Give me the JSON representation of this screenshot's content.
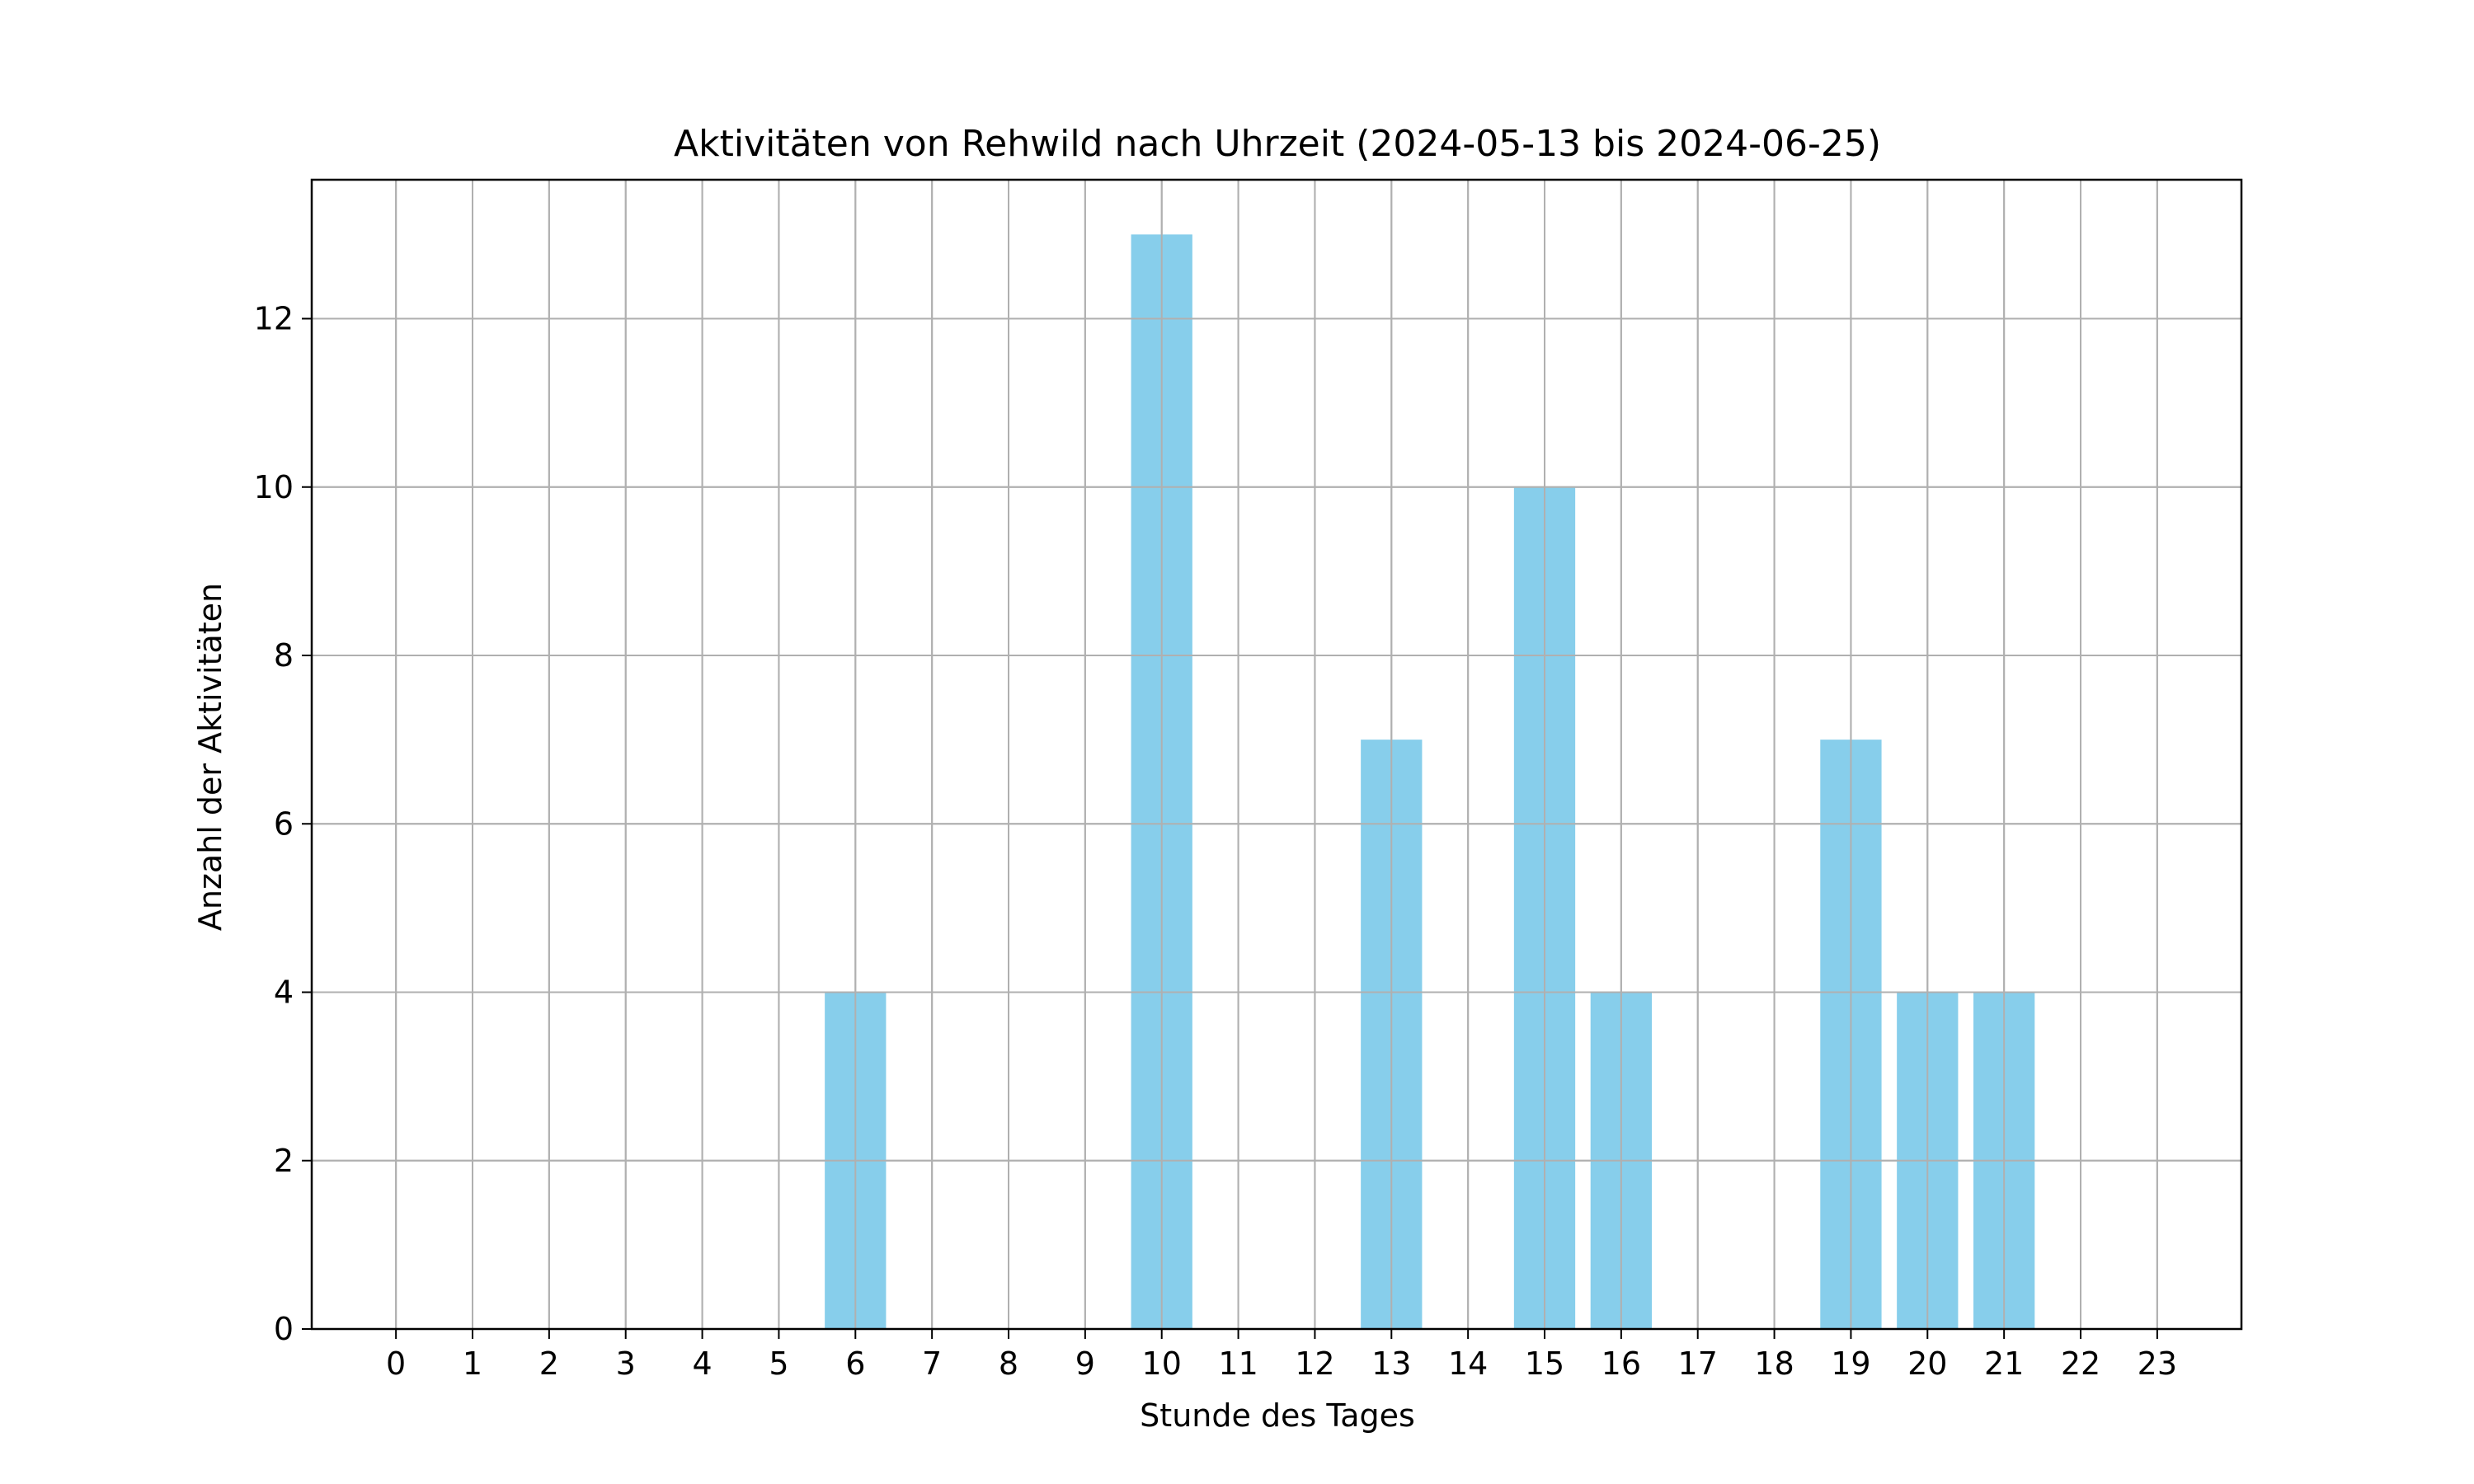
{
  "chart_data": {
    "type": "bar",
    "title": "Aktivitäten von Rehwild nach Uhrzeit (2024-05-13 bis 2024-06-25)",
    "xlabel": "Stunde des Tages",
    "ylabel": "Anzahl der Aktivitäten",
    "categories": [
      "0",
      "1",
      "2",
      "3",
      "4",
      "5",
      "6",
      "7",
      "8",
      "9",
      "10",
      "11",
      "12",
      "13",
      "14",
      "15",
      "16",
      "17",
      "18",
      "19",
      "20",
      "21",
      "22",
      "23"
    ],
    "values": [
      0,
      0,
      0,
      0,
      0,
      0,
      4,
      0,
      0,
      0,
      13,
      0,
      0,
      7,
      0,
      10,
      4,
      0,
      0,
      7,
      4,
      4,
      0,
      0
    ],
    "ylim": [
      0,
      13.65
    ],
    "yticks": [
      "0",
      "2",
      "4",
      "6",
      "8",
      "10",
      "12"
    ],
    "grid": true,
    "bar_color": "#87CEEB",
    "grid_color": "#b0b0b0"
  }
}
